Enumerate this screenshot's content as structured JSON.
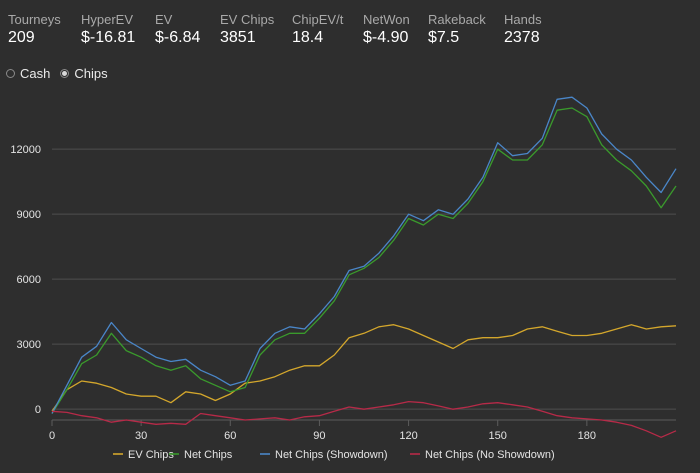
{
  "stats": [
    {
      "label": "Tourneys",
      "value": "209"
    },
    {
      "label": "HyperEV",
      "value": "$-16.81"
    },
    {
      "label": "EV",
      "value": "$-6.84"
    },
    {
      "label": "EV Chips",
      "value": "3851"
    },
    {
      "label": "ChipEV/t",
      "value": "18.4"
    },
    {
      "label": "NetWon",
      "value": "$-4.90"
    },
    {
      "label": "Rakeback",
      "value": "$7.5"
    },
    {
      "label": "Hands",
      "value": "2378"
    }
  ],
  "modes": {
    "cash_label": "Cash",
    "chips_label": "Chips",
    "selected": "chips"
  },
  "chart_data": {
    "type": "line",
    "grid": "horizontal",
    "legend_position": "bottom",
    "xlim": [
      0,
      210
    ],
    "ylim": [
      -500,
      14500
    ],
    "xticks": [
      0,
      30,
      60,
      90,
      120,
      150,
      180
    ],
    "yticks": [
      0,
      3000,
      6000,
      9000,
      12000
    ],
    "series": [
      {
        "name": "EV Chips",
        "color": "#d4a72c",
        "x": [
          0,
          5,
          10,
          15,
          20,
          25,
          30,
          35,
          40,
          45,
          50,
          55,
          60,
          65,
          70,
          75,
          80,
          85,
          90,
          95,
          100,
          105,
          110,
          115,
          120,
          125,
          130,
          135,
          140,
          145,
          150,
          155,
          160,
          165,
          170,
          175,
          180,
          185,
          190,
          195,
          200,
          205,
          210
        ],
        "values": [
          -100,
          900,
          1300,
          1200,
          1000,
          700,
          600,
          600,
          300,
          800,
          700,
          400,
          700,
          1200,
          1300,
          1500,
          1800,
          2000,
          2000,
          2500,
          3300,
          3500,
          3800,
          3900,
          3700,
          3400,
          3100,
          2800,
          3200,
          3300,
          3300,
          3400,
          3700,
          3800,
          3600,
          3400,
          3400,
          3500,
          3700,
          3900,
          3700,
          3800,
          3850
        ]
      },
      {
        "name": "Net Chips",
        "color": "#3a9a2c",
        "x": [
          0,
          5,
          10,
          15,
          20,
          25,
          30,
          35,
          40,
          45,
          50,
          55,
          60,
          65,
          70,
          75,
          80,
          85,
          90,
          95,
          100,
          105,
          110,
          115,
          120,
          125,
          130,
          135,
          140,
          145,
          150,
          155,
          160,
          165,
          170,
          175,
          180,
          185,
          190,
          195,
          200,
          205,
          210
        ],
        "values": [
          -200,
          900,
          2100,
          2500,
          3500,
          2700,
          2400,
          2000,
          1800,
          2000,
          1400,
          1100,
          800,
          1000,
          2500,
          3200,
          3500,
          3500,
          4200,
          5000,
          6200,
          6500,
          7000,
          7800,
          8800,
          8500,
          9000,
          8800,
          9500,
          10500,
          12000,
          11500,
          11500,
          12200,
          13800,
          13900,
          13500,
          12200,
          11500,
          11000,
          10300,
          9300,
          10300
        ]
      },
      {
        "name": "Net Chips (Showdown)",
        "color": "#4a86c8",
        "x": [
          0,
          5,
          10,
          15,
          20,
          25,
          30,
          35,
          40,
          45,
          50,
          55,
          60,
          65,
          70,
          75,
          80,
          85,
          90,
          95,
          100,
          105,
          110,
          115,
          120,
          125,
          130,
          135,
          140,
          145,
          150,
          155,
          160,
          165,
          170,
          175,
          180,
          185,
          190,
          195,
          200,
          205,
          210
        ],
        "values": [
          -200,
          1100,
          2400,
          2900,
          4000,
          3200,
          2800,
          2400,
          2200,
          2300,
          1800,
          1500,
          1100,
          1300,
          2800,
          3500,
          3800,
          3700,
          4400,
          5200,
          6400,
          6600,
          7200,
          8000,
          9000,
          8700,
          9200,
          9000,
          9700,
          10700,
          12300,
          11700,
          11800,
          12500,
          14300,
          14400,
          13900,
          12700,
          12000,
          11500,
          10700,
          10000,
          11100
        ]
      },
      {
        "name": "Net Chips (No Showdown)",
        "color": "#b72a48",
        "x": [
          0,
          5,
          10,
          15,
          20,
          25,
          30,
          35,
          40,
          45,
          50,
          55,
          60,
          65,
          70,
          75,
          80,
          85,
          90,
          95,
          100,
          105,
          110,
          115,
          120,
          125,
          130,
          135,
          140,
          145,
          150,
          155,
          160,
          165,
          170,
          175,
          180,
          185,
          190,
          195,
          200,
          205,
          210
        ],
        "values": [
          -100,
          -150,
          -300,
          -400,
          -600,
          -500,
          -600,
          -700,
          -650,
          -700,
          -200,
          -300,
          -400,
          -500,
          -450,
          -400,
          -500,
          -350,
          -300,
          -100,
          100,
          0,
          100,
          200,
          350,
          300,
          150,
          0,
          100,
          250,
          300,
          200,
          100,
          -100,
          -300,
          -400,
          -450,
          -500,
          -600,
          -750,
          -1000,
          -1300,
          -1000
        ]
      }
    ]
  }
}
